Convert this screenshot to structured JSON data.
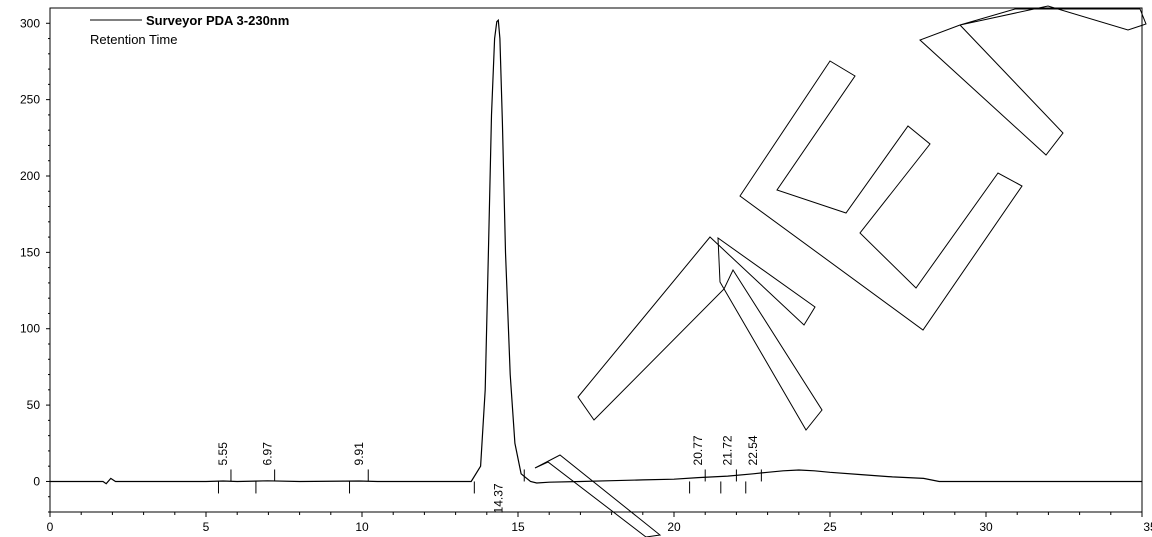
{
  "chart_data": {
    "type": "line",
    "title": "",
    "legend": {
      "series_name": "Surveyor PDA 3-230nm",
      "subtitle": "Retention Time",
      "placement": "top-left"
    },
    "xlabel": "",
    "ylabel": "",
    "xlim": [
      0,
      35
    ],
    "ylim": [
      -20,
      310
    ],
    "x_ticks": [
      0,
      5,
      10,
      15,
      20,
      25,
      30,
      35
    ],
    "y_ticks": [
      0,
      50,
      100,
      150,
      200,
      250,
      300
    ],
    "grid": false,
    "series": [
      {
        "name": "Surveyor PDA 3-230nm",
        "x": [
          0,
          1.7,
          1.8,
          1.95,
          2.1,
          3.0,
          5.0,
          5.55,
          6.0,
          6.97,
          8.0,
          9.91,
          10.5,
          12.0,
          13.5,
          13.8,
          13.95,
          14.05,
          14.15,
          14.25,
          14.32,
          14.37,
          14.42,
          14.5,
          14.6,
          14.75,
          14.9,
          15.1,
          15.4,
          15.6,
          16.0,
          17.0,
          18.0,
          19.0,
          20.0,
          20.77,
          21.72,
          22.54,
          23.0,
          23.5,
          24.0,
          24.5,
          25.0,
          26.0,
          27.0,
          28.0,
          28.5,
          30.0,
          32.0,
          35.0
        ],
        "y": [
          0,
          0,
          -1.5,
          2,
          0,
          0,
          0,
          0.3,
          0,
          0.4,
          0,
          0.3,
          0,
          0,
          0,
          10,
          60,
          150,
          240,
          290,
          301,
          302,
          290,
          235,
          150,
          70,
          25,
          5,
          0,
          -1,
          -0.5,
          0,
          0.5,
          1,
          1.5,
          2.5,
          3.5,
          5,
          6,
          7,
          7.5,
          7,
          6,
          4.5,
          3,
          2,
          0,
          0,
          0,
          0
        ]
      }
    ],
    "peak_labels": [
      {
        "x": 5.55,
        "label": "5.55"
      },
      {
        "x": 6.97,
        "label": "6.97"
      },
      {
        "x": 9.91,
        "label": "9.91"
      },
      {
        "x": 14.37,
        "label": "14.37"
      },
      {
        "x": 20.77,
        "label": "20.77"
      },
      {
        "x": 21.72,
        "label": "21.72"
      },
      {
        "x": 22.54,
        "label": "22.54"
      }
    ],
    "integration_marks": [
      {
        "x": 5.4,
        "dir": "down"
      },
      {
        "x": 5.8,
        "dir": "up"
      },
      {
        "x": 6.6,
        "dir": "down"
      },
      {
        "x": 7.2,
        "dir": "up"
      },
      {
        "x": 9.6,
        "dir": "down"
      },
      {
        "x": 10.2,
        "dir": "up"
      },
      {
        "x": 13.6,
        "dir": "down"
      },
      {
        "x": 15.2,
        "dir": "up"
      },
      {
        "x": 20.5,
        "dir": "down"
      },
      {
        "x": 21.0,
        "dir": "up"
      },
      {
        "x": 21.5,
        "dir": "down"
      },
      {
        "x": 22.0,
        "dir": "up"
      },
      {
        "x": 22.3,
        "dir": "down"
      },
      {
        "x": 22.8,
        "dir": "up"
      }
    ]
  },
  "watermark": {
    "text": "MEN",
    "description": "outlined-letters-watermark"
  },
  "colors": {
    "line": "#000000",
    "axis": "#000000",
    "background": "#ffffff",
    "watermark_stroke": "#000000"
  }
}
